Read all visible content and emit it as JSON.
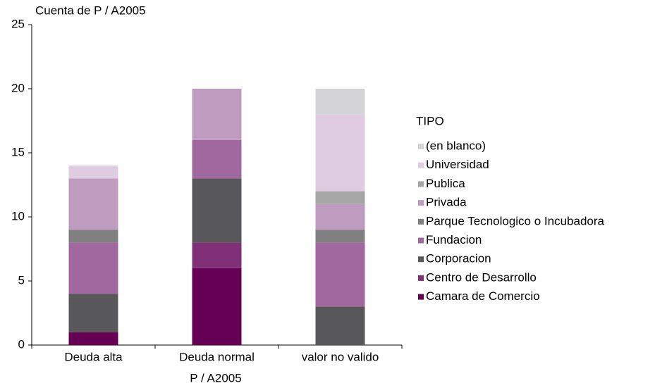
{
  "chart_data": {
    "type": "stacked_bar",
    "title": "Cuenta de P / A2005",
    "xlabel": "P / A2005",
    "categories": [
      "Deuda alta",
      "Deuda normal",
      "valor no valido"
    ],
    "legend_title": "TIPO",
    "legend": "right",
    "grid": false,
    "ylim": [
      0,
      25
    ],
    "yticks": [
      0,
      5,
      10,
      15,
      20,
      25
    ],
    "series": [
      {
        "name": "Camara de Comercio",
        "color": "#660055",
        "values": [
          1,
          6,
          0
        ]
      },
      {
        "name": "Centro de Desarrollo",
        "color": "#7f3077",
        "values": [
          0,
          2,
          0
        ]
      },
      {
        "name": "Corporacion",
        "color": "#58585a",
        "values": [
          3,
          5,
          3
        ]
      },
      {
        "name": "Fundacion",
        "color": "#a0689f",
        "values": [
          4,
          3,
          5
        ]
      },
      {
        "name": "Parque Tecnologico o Incubadora",
        "color": "#808080",
        "values": [
          1,
          0,
          1
        ]
      },
      {
        "name": "Privada",
        "color": "#c09bc0",
        "values": [
          4,
          4,
          2
        ]
      },
      {
        "name": "Publica",
        "color": "#a6a6a6",
        "values": [
          0,
          0,
          1
        ]
      },
      {
        "name": "Universidad",
        "color": "#e0cce0",
        "values": [
          1,
          0,
          6
        ]
      },
      {
        "name": "(en blanco)",
        "color": "#d4d4d6",
        "values": [
          0,
          0,
          2
        ]
      }
    ]
  }
}
